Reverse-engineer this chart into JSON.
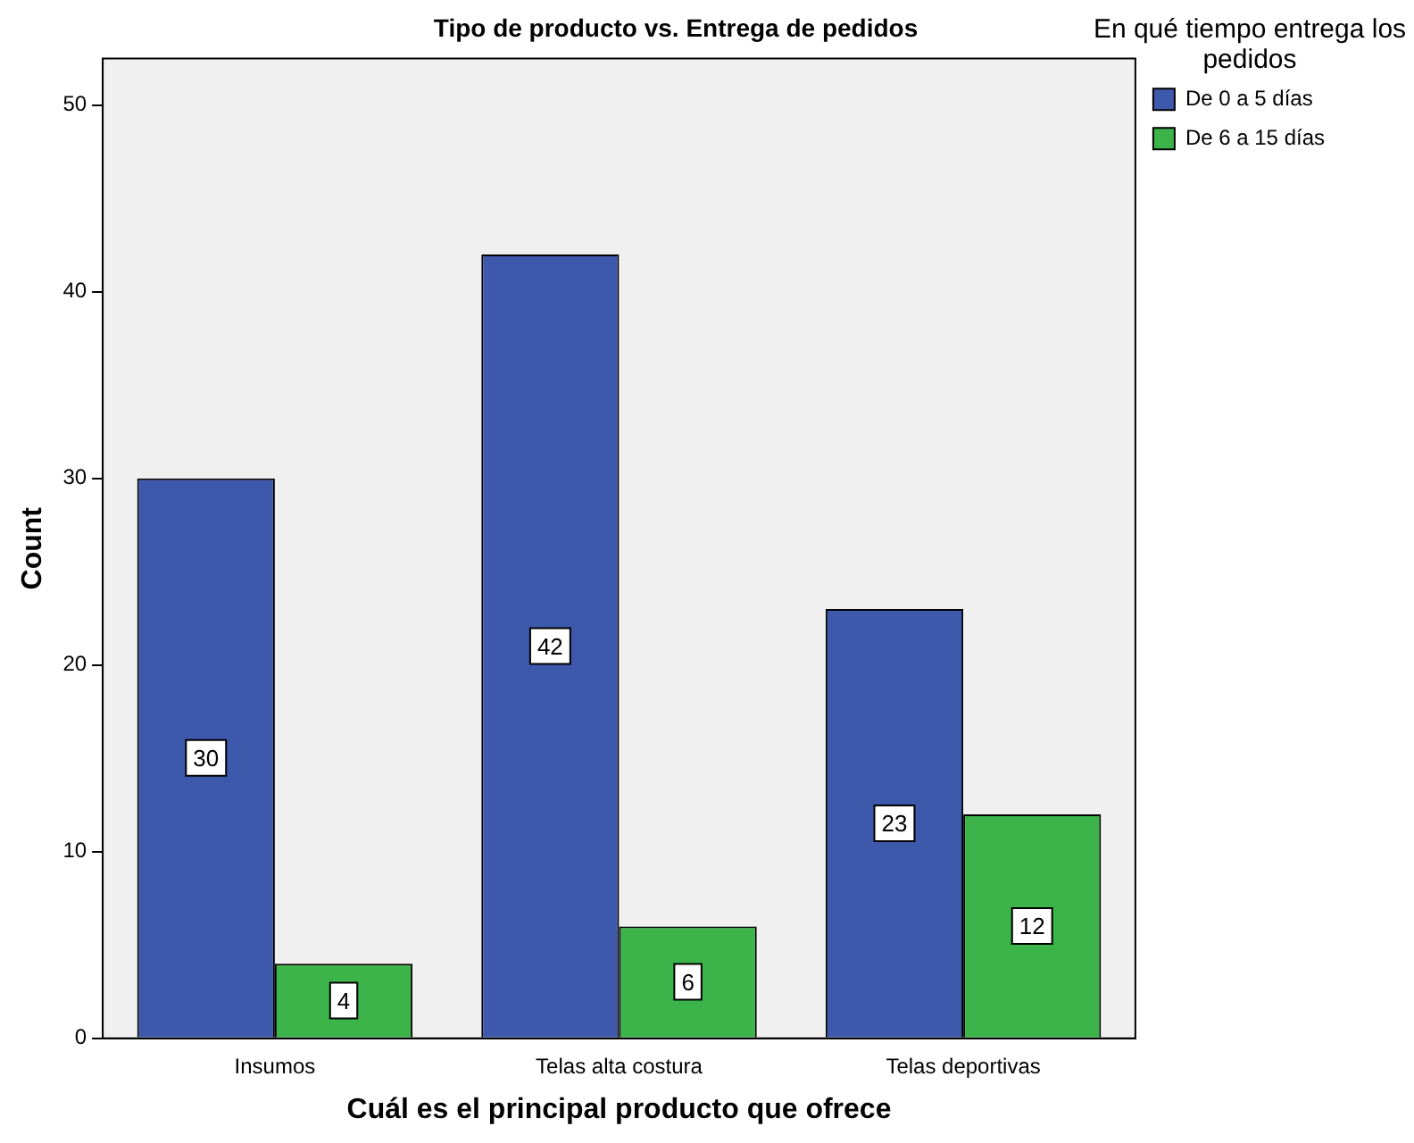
{
  "chart_data": {
    "type": "bar",
    "title": "Tipo de producto vs. Entrega de pedidos",
    "xlabel": "Cuál es el principal producto que ofrece",
    "ylabel": "Count",
    "legend_title": "En qué tiempo entrega los pedidos",
    "categories": [
      "Insumos",
      "Telas alta costura",
      "Telas deportivas"
    ],
    "series": [
      {
        "name": "De 0 a 5 días",
        "color": "#3e58ac",
        "values": [
          30,
          42,
          23
        ]
      },
      {
        "name": "De 6 a 15 días",
        "color": "#3cb44a",
        "values": [
          4,
          6,
          12
        ]
      }
    ],
    "ylim": [
      0,
      52.5
    ],
    "yticks": [
      0,
      10,
      20,
      30,
      40,
      50
    ],
    "grid": false,
    "legend": "top right",
    "data_labels": true
  }
}
